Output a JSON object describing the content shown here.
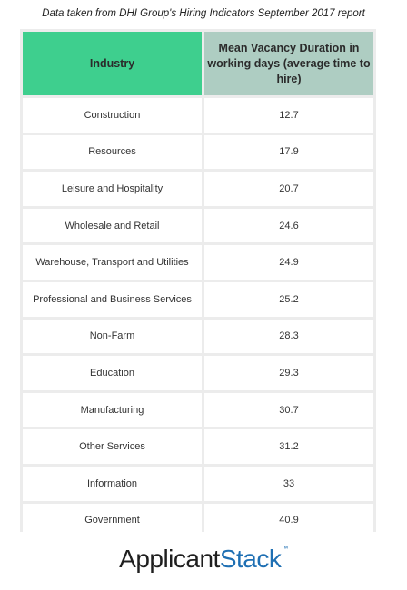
{
  "caption": "Data taken from DHI Group's Hiring Indicators September 2017 report",
  "chart_data": {
    "type": "table",
    "columns": [
      "Industry",
      "Mean Vacancy Duration in working days (average time to hire)"
    ],
    "rows": [
      [
        "Construction",
        "12.7"
      ],
      [
        "Resources",
        "17.9"
      ],
      [
        "Leisure and Hospitality",
        "20.7"
      ],
      [
        "Wholesale and Retail",
        "24.6"
      ],
      [
        "Warehouse, Transport and Utilities",
        "24.9"
      ],
      [
        "Professional and Business Services",
        "25.2"
      ],
      [
        "Non-Farm",
        "28.3"
      ],
      [
        "Education",
        "29.3"
      ],
      [
        "Manufacturing",
        "30.7"
      ],
      [
        "Other Services",
        "31.2"
      ],
      [
        "Information",
        "33"
      ],
      [
        "Government",
        "40.9"
      ]
    ],
    "colors": {
      "header_left": "#3ecf8e",
      "header_right": "#aecdc2",
      "grid": "#ececec"
    }
  },
  "logo": {
    "part1": "Applicant",
    "part2": "Stack",
    "tm": "™"
  }
}
